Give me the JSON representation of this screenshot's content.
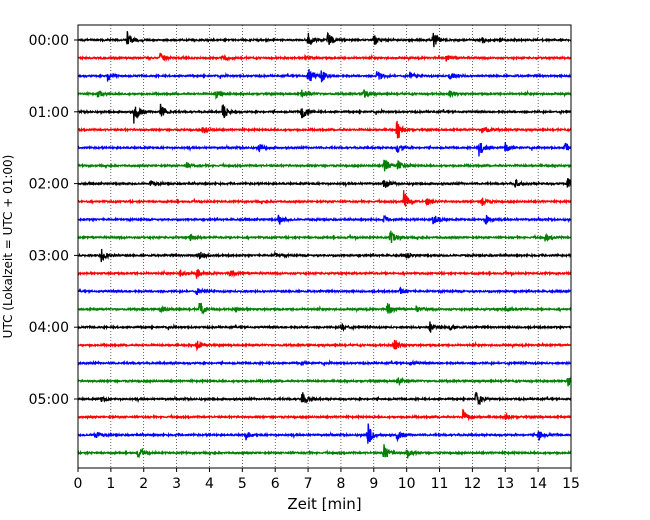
{
  "chart_data": {
    "type": "line",
    "title": "",
    "xlabel": "Zeit  [min]",
    "ylabel": "UTC (Lokalzeit = UTC + 01:00)",
    "xlim": [
      0,
      15
    ],
    "x_ticks": [
      0,
      1,
      2,
      3,
      4,
      5,
      6,
      7,
      8,
      9,
      10,
      11,
      12,
      13,
      14,
      15
    ],
    "y_tick_labels": [
      "00:00",
      "01:00",
      "02:00",
      "03:00",
      "04:00",
      "05:00"
    ],
    "grid": "vertical dotted at each minute",
    "trace_interval_minutes": 15,
    "trace_colors": [
      "#000000",
      "#ff0000",
      "#0000ff",
      "#008000"
    ],
    "traces": [
      {
        "start": "00:00",
        "events": [
          [
            1.5,
            0.9
          ],
          [
            7.0,
            0.9
          ],
          [
            7.6,
            0.9
          ],
          [
            9.0,
            0.6
          ],
          [
            10.8,
            1.0
          ],
          [
            12.3,
            0.4
          ]
        ]
      },
      {
        "start": "00:15",
        "events": [
          [
            2.5,
            0.5
          ],
          [
            4.4,
            0.4
          ],
          [
            6.9,
            0.3
          ],
          [
            11.2,
            0.3
          ]
        ]
      },
      {
        "start": "00:30",
        "events": [
          [
            0.9,
            0.6
          ],
          [
            7.0,
            1.2
          ],
          [
            7.4,
            0.7
          ],
          [
            9.1,
            0.7
          ],
          [
            10.1,
            0.4
          ],
          [
            11.3,
            0.6
          ]
        ]
      },
      {
        "start": "00:45",
        "events": [
          [
            0.6,
            0.4
          ],
          [
            4.2,
            0.6
          ],
          [
            6.8,
            0.5
          ],
          [
            8.7,
            0.6
          ],
          [
            11.3,
            0.5
          ]
        ]
      },
      {
        "start": "01:00",
        "events": [
          [
            1.7,
            1.3
          ],
          [
            2.5,
            0.9
          ],
          [
            4.4,
            1.0
          ],
          [
            6.8,
            1.3
          ]
        ]
      },
      {
        "start": "01:15",
        "events": [
          [
            3.8,
            0.5
          ],
          [
            9.7,
            1.2
          ],
          [
            12.3,
            0.6
          ]
        ]
      },
      {
        "start": "01:30",
        "events": [
          [
            5.5,
            0.4
          ],
          [
            9.7,
            0.6
          ],
          [
            12.2,
            1.0
          ],
          [
            13.0,
            0.7
          ],
          [
            14.8,
            0.6
          ]
        ]
      },
      {
        "start": "01:45",
        "events": [
          [
            3.3,
            0.4
          ],
          [
            9.3,
            1.0
          ],
          [
            9.7,
            0.7
          ]
        ]
      },
      {
        "start": "02:00",
        "events": [
          [
            2.2,
            0.3
          ],
          [
            9.3,
            0.7
          ],
          [
            13.3,
            0.5
          ],
          [
            14.9,
            0.8
          ]
        ]
      },
      {
        "start": "02:15",
        "events": [
          [
            9.9,
            1.3
          ],
          [
            10.6,
            0.5
          ],
          [
            12.3,
            0.4
          ]
        ]
      },
      {
        "start": "02:30",
        "events": [
          [
            6.1,
            0.6
          ],
          [
            9.3,
            0.5
          ],
          [
            10.8,
            0.8
          ],
          [
            12.4,
            0.6
          ]
        ]
      },
      {
        "start": "02:45",
        "events": [
          [
            3.4,
            0.4
          ],
          [
            9.5,
            0.8
          ],
          [
            14.2,
            0.4
          ]
        ]
      },
      {
        "start": "03:00",
        "events": [
          [
            0.7,
            0.8
          ],
          [
            3.7,
            0.5
          ],
          [
            6.0,
            0.3
          ],
          [
            10.0,
            0.3
          ]
        ]
      },
      {
        "start": "03:15",
        "events": [
          [
            3.1,
            0.5
          ],
          [
            3.6,
            0.6
          ],
          [
            4.6,
            0.5
          ]
        ]
      },
      {
        "start": "03:30",
        "events": [
          [
            3.6,
            0.5
          ],
          [
            9.8,
            0.3
          ]
        ]
      },
      {
        "start": "03:45",
        "events": [
          [
            2.5,
            0.4
          ],
          [
            3.7,
            1.0
          ],
          [
            4.8,
            0.4
          ],
          [
            9.4,
            0.8
          ],
          [
            10.3,
            0.4
          ],
          [
            13.0,
            0.4
          ]
        ]
      },
      {
        "start": "04:00",
        "events": [
          [
            8.0,
            0.5
          ],
          [
            10.7,
            0.7
          ],
          [
            11.3,
            0.3
          ]
        ]
      },
      {
        "start": "04:15",
        "events": [
          [
            3.6,
            0.6
          ],
          [
            9.6,
            1.0
          ]
        ]
      },
      {
        "start": "04:30",
        "events": [
          [
            6.8,
            0.3
          ],
          [
            10.1,
            0.3
          ]
        ]
      },
      {
        "start": "04:45",
        "events": [
          [
            9.7,
            0.6
          ],
          [
            14.9,
            0.6
          ]
        ]
      },
      {
        "start": "05:00",
        "events": [
          [
            0.7,
            0.4
          ],
          [
            6.8,
            1.0
          ],
          [
            12.1,
            0.9
          ]
        ]
      },
      {
        "start": "05:15",
        "events": [
          [
            11.7,
            0.9
          ],
          [
            13.0,
            0.4
          ]
        ]
      },
      {
        "start": "05:30",
        "events": [
          [
            0.5,
            0.5
          ],
          [
            5.1,
            0.6
          ],
          [
            8.8,
            1.5
          ],
          [
            9.7,
            0.6
          ],
          [
            14.0,
            0.7
          ]
        ]
      },
      {
        "start": "05:45",
        "events": [
          [
            1.8,
            0.6
          ],
          [
            9.3,
            1.0
          ],
          [
            10.0,
            0.8
          ]
        ]
      }
    ]
  }
}
